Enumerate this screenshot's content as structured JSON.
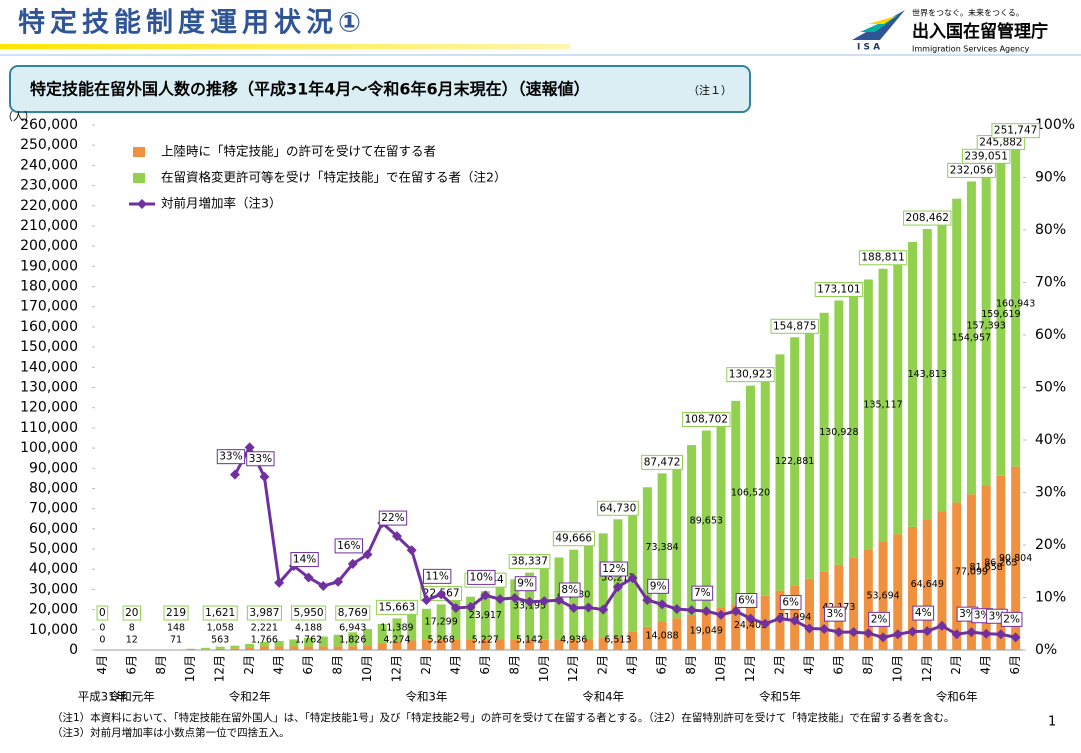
{
  "header": {
    "title": "特定技能制度運用状況①",
    "tagline": "世界をつなぐ。未来をつくる。",
    "agency": "出入国在留管理庁",
    "agency_en": "Immigration Services Agency",
    "logo": "I S A"
  },
  "chart_data": {
    "type": "bar",
    "stacked": true,
    "title": "特定技能在留外国人数の推移（平成31年4月～令和6年6月末現在）（速報値）",
    "title_note": "（注１）",
    "y_unit": "（人）",
    "legend": "top-left",
    "grid": false,
    "categories": [
      "4月",
      null,
      "6月",
      null,
      "8月",
      null,
      "10月",
      null,
      "12月",
      null,
      "2月",
      null,
      "4月",
      null,
      "6月",
      null,
      "8月",
      null,
      "10月",
      null,
      "12月",
      null,
      "2月",
      null,
      "4月",
      null,
      "6月",
      null,
      "8月",
      null,
      "10月",
      null,
      "12月",
      null,
      "2月",
      null,
      "4月",
      null,
      "6月",
      null,
      "8月",
      null,
      "10月",
      null,
      "12月",
      null,
      "2月",
      null,
      "4月",
      null,
      "6月",
      null,
      "8月",
      null,
      "10月",
      null,
      "12月",
      null,
      "2月",
      null,
      "4月",
      null,
      "6月"
    ],
    "category_groups": [
      "平成31年",
      null,
      "令和元年",
      null,
      null,
      null,
      null,
      null,
      null,
      null,
      "令和2年",
      null,
      null,
      null,
      null,
      null,
      null,
      null,
      null,
      null,
      null,
      null,
      "令和3年",
      null,
      null,
      null,
      null,
      null,
      null,
      null,
      null,
      null,
      null,
      null,
      "令和4年",
      null,
      null,
      null,
      null,
      null,
      null,
      null,
      null,
      null,
      null,
      null,
      "令和5年",
      null,
      null,
      null,
      null,
      null,
      null,
      null,
      null,
      null,
      null,
      null,
      "令和6年",
      null,
      null,
      null,
      null
    ],
    "series": [
      {
        "name": "上陸時に「特定技能」の許可を受けて在留する者",
        "color": "#f0913f",
        "values": [
          0,
          4,
          12,
          30,
          50,
          71,
          200,
          380,
          563,
          850,
          1300,
          1766,
          1760,
          1760,
          1762,
          1780,
          1800,
          1826,
          2300,
          3200,
          4274,
          4700,
          5000,
          5268,
          5250,
          5240,
          5227,
          5200,
          5170,
          5142,
          5080,
          5000,
          4936,
          5400,
          5900,
          6513,
          9000,
          11500,
          14088,
          15700,
          17400,
          19049,
          20800,
          22600,
          24403,
          26900,
          29400,
          31994,
          35300,
          38700,
          42173,
          45900,
          49800,
          53694,
          57300,
          61000,
          64649,
          68800,
          73000,
          77099,
          81658,
          86263,
          90804
        ],
        "value_labels": [
          "0",
          null,
          "12",
          null,
          null,
          "71",
          null,
          null,
          "563",
          null,
          null,
          "1,766",
          null,
          null,
          "1,762",
          null,
          null,
          "1,826",
          null,
          null,
          "4,274",
          null,
          null,
          "5,268",
          null,
          null,
          "5,227",
          null,
          null,
          "5,142",
          null,
          null,
          "4,936",
          null,
          null,
          "6,513",
          null,
          null,
          "14,088",
          null,
          null,
          "19,049",
          null,
          null,
          "24,403",
          null,
          null,
          "31,994",
          null,
          null,
          "42,173",
          null,
          null,
          "53,694",
          null,
          null,
          "64,649",
          null,
          null,
          "77,099",
          "81,658",
          "86,263",
          "90,804"
        ]
      },
      {
        "name": "在留資格変更許可等を受け「特定技能」で在留する者（注2）",
        "color": "#92d050",
        "values": [
          0,
          2,
          8,
          40,
          90,
          148,
          400,
          700,
          1058,
          1313,
          1698,
          2221,
          2737,
          3457,
          4188,
          4896,
          5744,
          6943,
          8065,
          9670,
          11389,
          13940,
          15411,
          17299,
          19120,
          21150,
          23917,
          26710,
          29840,
          33195,
          36820,
          40840,
          44730,
          48290,
          51870,
          58217,
          64600,
          69100,
          73384,
          78600,
          84100,
          89653,
          95600,
          100800,
          106520,
          111800,
          117000,
          122881,
          125600,
          128300,
          130928,
          132400,
          133700,
          135117,
          138200,
          141100,
          143813,
          147000,
          150500,
          154957,
          157393,
          159619,
          160943
        ],
        "value_labels": [
          "0",
          null,
          "8",
          null,
          null,
          "148",
          null,
          null,
          "1,058",
          null,
          null,
          "2,221",
          null,
          null,
          "4,188",
          null,
          null,
          "6,943",
          null,
          null,
          "11,389",
          null,
          null,
          "17,299",
          null,
          null,
          "23,917",
          null,
          null,
          "33,195",
          null,
          null,
          "44,730",
          null,
          null,
          "58,217",
          null,
          null,
          "73,384",
          null,
          null,
          "89,653",
          null,
          null,
          "106,520",
          null,
          null,
          "122,881",
          null,
          null,
          "130,928",
          null,
          null,
          "135,117",
          null,
          null,
          "143,813",
          null,
          null,
          "154,957",
          "157,393",
          "159,619",
          "160,943"
        ]
      },
      {
        "name": "対前月増加率（注3）",
        "color": "#7030a0",
        "type": "line",
        "axis": "y2",
        "values": [
          null,
          null,
          null,
          null,
          null,
          null,
          null,
          null,
          null,
          33.4,
          38.6,
          33.0,
          12.8,
          16.0,
          13.8,
          12.2,
          13.0,
          16.4,
          18.2,
          24.2,
          21.7,
          19.0,
          9.5,
          10.6,
          8.0,
          8.2,
          10.4,
          9.7,
          9.9,
          9.2,
          9.3,
          9.5,
          8.0,
          8.1,
          7.7,
          12.0,
          13.7,
          9.5,
          8.7,
          7.8,
          7.6,
          7.4,
          6.7,
          7.4,
          6.0,
          5.0,
          6.0,
          5.6,
          4.1,
          4.0,
          3.4,
          3.4,
          3.2,
          2.4,
          3.0,
          3.5,
          3.6,
          4.6,
          3.0,
          3.4,
          3.1,
          3.0,
          2.4
        ],
        "value_labels": [
          null,
          null,
          null,
          null,
          null,
          null,
          null,
          null,
          null,
          "33%",
          null,
          "33%",
          null,
          null,
          "14%",
          null,
          null,
          "16%",
          null,
          null,
          "22%",
          null,
          null,
          "11%",
          null,
          null,
          "10%",
          null,
          null,
          "9%",
          null,
          null,
          "8%",
          null,
          null,
          "12%",
          null,
          null,
          "9%",
          null,
          null,
          "7%",
          null,
          null,
          "6%",
          null,
          null,
          "6%",
          null,
          null,
          "3%",
          null,
          null,
          "2%",
          null,
          null,
          "4%",
          null,
          null,
          "3%",
          "3%",
          "3%",
          "2%"
        ]
      }
    ],
    "total_labels": [
      "0",
      null,
      "20",
      null,
      null,
      "219",
      null,
      null,
      "1,621",
      null,
      null,
      "3,987",
      null,
      null,
      "5,950",
      null,
      null,
      "8,769",
      null,
      null,
      "15,663",
      null,
      null,
      "22,567",
      null,
      null,
      "29,144",
      null,
      null,
      "38,337",
      null,
      null,
      "49,666",
      null,
      null,
      "64,730",
      null,
      null,
      "87,472",
      null,
      null,
      "108,702",
      null,
      null,
      "130,923",
      null,
      null,
      "154,875",
      null,
      null,
      "173,101",
      null,
      null,
      "188,811",
      null,
      null,
      "208,462",
      null,
      null,
      "232,056",
      "239,051",
      "245,882",
      "251,747"
    ],
    "ylim": [
      0,
      260000
    ],
    "yticks": [
      0,
      {
        "value": 10000,
        "label": "10,000"
      },
      {
        "value": 20000,
        "label": "20,000"
      },
      {
        "value": 30000,
        "label": "30,000"
      },
      {
        "value": 40000,
        "label": "40,000"
      },
      {
        "value": 50000,
        "label": "50,000"
      },
      {
        "value": 60000,
        "label": "60,000"
      },
      {
        "value": 70000,
        "label": "70,000"
      },
      {
        "value": 80000,
        "label": "80,000"
      },
      {
        "value": 90000,
        "label": "90,000"
      },
      {
        "value": 100000,
        "label": "100,000"
      },
      {
        "value": 110000,
        "label": "110,000"
      },
      {
        "value": 120000,
        "label": "120,000"
      },
      {
        "value": 130000,
        "label": "130,000"
      },
      {
        "value": 140000,
        "label": "140,000"
      },
      {
        "value": 150000,
        "label": "150,000"
      },
      {
        "value": 160000,
        "label": "160,000"
      },
      {
        "value": 170000,
        "label": "170,000"
      },
      {
        "value": 180000,
        "label": "180,000"
      },
      {
        "value": 190000,
        "label": "190,000"
      },
      {
        "value": 200000,
        "label": "200,000"
      },
      {
        "value": 210000,
        "label": "210,000"
      },
      {
        "value": 220000,
        "label": "220,000"
      },
      {
        "value": 230000,
        "label": "230,000"
      },
      {
        "value": 240000,
        "label": "240,000"
      },
      {
        "value": 250000,
        "label": "250,000"
      },
      {
        "value": 260000,
        "label": "260,000"
      }
    ],
    "y2lim": [
      0,
      100
    ],
    "y2ticks": [
      {
        "value": 0,
        "label": "0%"
      },
      {
        "value": 10,
        "label": "10%"
      },
      {
        "value": 20,
        "label": "20%"
      },
      {
        "value": 30,
        "label": "30%"
      },
      {
        "value": 40,
        "label": "40%"
      },
      {
        "value": 50,
        "label": "50%"
      },
      {
        "value": 60,
        "label": "60%"
      },
      {
        "value": 70,
        "label": "70%"
      },
      {
        "value": 80,
        "label": "80%"
      },
      {
        "value": 90,
        "label": "90%"
      },
      {
        "value": 100,
        "label": "100%"
      }
    ]
  },
  "footnotes": [
    "（注1）本資料において、「特定技能在留外国人」は、「特定技能1号」及び「特定技能2号」の許可を受けて在留する者とする。（注2）在留特別許可を受けて「特定技能」で在留する者を含む。",
    "（注3）対前月増加率は小数点第一位で四捨五入。"
  ],
  "page_number": 1
}
